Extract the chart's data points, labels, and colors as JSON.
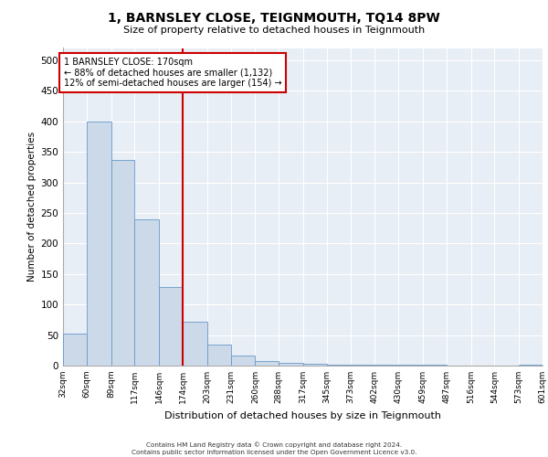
{
  "title": "1, BARNSLEY CLOSE, TEIGNMOUTH, TQ14 8PW",
  "subtitle": "Size of property relative to detached houses in Teignmouth",
  "xlabel": "Distribution of detached houses by size in Teignmouth",
  "ylabel": "Number of detached properties",
  "bar_color": "#ccd9e8",
  "bar_edge_color": "#6699cc",
  "vline_x": 174,
  "vline_color": "#cc0000",
  "annotation_text": "1 BARNSLEY CLOSE: 170sqm\n← 88% of detached houses are smaller (1,132)\n12% of semi-detached houses are larger (154) →",
  "annotation_box_color": "#ffffff",
  "annotation_box_edge": "#cc0000",
  "bins": [
    32,
    60,
    89,
    117,
    146,
    174,
    203,
    231,
    260,
    288,
    317,
    345,
    373,
    402,
    430,
    459,
    487,
    516,
    544,
    573,
    601
  ],
  "values": [
    52,
    400,
    337,
    240,
    128,
    72,
    35,
    16,
    8,
    5,
    3,
    2,
    1,
    1,
    1,
    1,
    0,
    0,
    0,
    2
  ],
  "ylim": [
    0,
    520
  ],
  "yticks": [
    0,
    50,
    100,
    150,
    200,
    250,
    300,
    350,
    400,
    450,
    500
  ],
  "bg_color": "#e8eef5",
  "footer_line1": "Contains HM Land Registry data © Crown copyright and database right 2024.",
  "footer_line2": "Contains public sector information licensed under the Open Government Licence v3.0."
}
